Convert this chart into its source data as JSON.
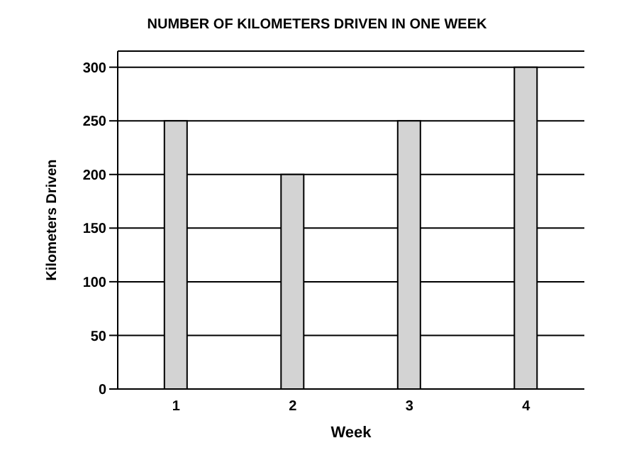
{
  "chart_data": {
    "type": "bar",
    "title": "NUMBER OF KILOMETERS DRIVEN IN ONE WEEK",
    "xlabel": "Week",
    "ylabel": "Kilometers Driven",
    "categories": [
      "1",
      "2",
      "3",
      "4"
    ],
    "values": [
      250,
      200,
      250,
      300
    ],
    "color": "#d3d3d3",
    "ylim": [
      0,
      315
    ],
    "yticks": [
      0,
      50,
      100,
      150,
      200,
      250,
      300
    ],
    "grid": "y"
  }
}
